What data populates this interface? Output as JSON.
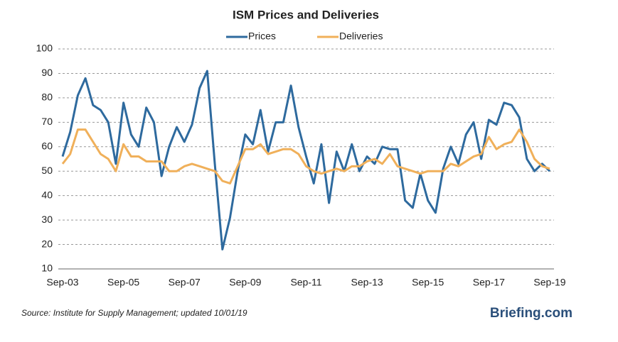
{
  "chart_data": {
    "type": "line",
    "title": "ISM Prices and Deliveries",
    "categories": [
      "Sep-03",
      null,
      null,
      null,
      null,
      null,
      null,
      null,
      "Sep-05",
      null,
      null,
      null,
      null,
      null,
      null,
      null,
      "Sep-07",
      null,
      null,
      null,
      null,
      null,
      null,
      null,
      "Sep-09",
      null,
      null,
      null,
      null,
      null,
      null,
      null,
      "Sep-11",
      null,
      null,
      null,
      null,
      null,
      null,
      null,
      "Sep-13",
      null,
      null,
      null,
      null,
      null,
      null,
      null,
      "Sep-15",
      null,
      null,
      null,
      null,
      null,
      null,
      null,
      "Sep-17",
      null,
      null,
      null,
      null,
      null,
      null,
      null,
      "Sep-19"
    ],
    "series": [
      {
        "name": "Prices",
        "color": "#2e6a9e",
        "values": [
          56,
          66,
          81,
          88,
          77,
          75,
          70,
          53,
          78,
          65,
          60,
          76,
          70,
          48,
          60,
          68,
          62,
          69,
          84,
          91,
          53,
          18,
          31,
          50,
          65,
          61,
          75,
          58,
          70,
          70,
          85,
          68,
          56,
          45,
          61,
          37,
          58,
          50,
          61,
          50,
          56,
          53,
          60,
          59,
          59,
          38,
          35,
          49,
          38,
          33,
          51,
          60,
          53,
          65,
          70,
          55,
          71,
          69,
          78,
          77,
          72,
          55,
          50,
          53,
          50
        ]
      },
      {
        "name": "Deliveries",
        "color": "#f0b05a",
        "values": [
          53,
          57,
          67,
          67,
          62,
          57,
          55,
          50,
          61,
          56,
          56,
          54,
          54,
          54,
          50,
          50,
          52,
          53,
          52,
          51,
          50,
          46,
          45,
          52,
          59,
          59,
          61,
          57,
          58,
          59,
          59,
          57,
          52,
          50,
          49,
          50,
          51,
          50,
          52,
          52,
          54,
          55,
          53,
          57,
          52,
          51,
          50,
          49,
          50,
          50,
          50,
          53,
          52,
          54,
          56,
          57,
          64,
          59,
          61,
          62,
          67,
          62,
          55,
          52,
          51
        ]
      }
    ],
    "ylim": [
      10,
      100
    ],
    "yticks": [
      10,
      20,
      30,
      40,
      50,
      60,
      70,
      80,
      90,
      100
    ],
    "grid": true,
    "legend": "top"
  },
  "footer": {
    "source": "Source: Institute for Supply Management; updated 10/01/19",
    "brand": "Briefing.com"
  }
}
